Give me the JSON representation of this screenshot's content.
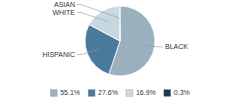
{
  "chart_data": {
    "type": "pie",
    "categories": [
      "BLACK",
      "HISPANIC",
      "WHITE",
      "ASIAN"
    ],
    "values": [
      55.1,
      27.6,
      16.9,
      0.3
    ],
    "colors": [
      "#9ab0bf",
      "#4a7a9b",
      "#c8d8e2",
      "#1c3a52"
    ],
    "value_labels": [
      "55.1%",
      "27.6%",
      "16.9%",
      "0.3%"
    ],
    "legend": "bottom"
  }
}
